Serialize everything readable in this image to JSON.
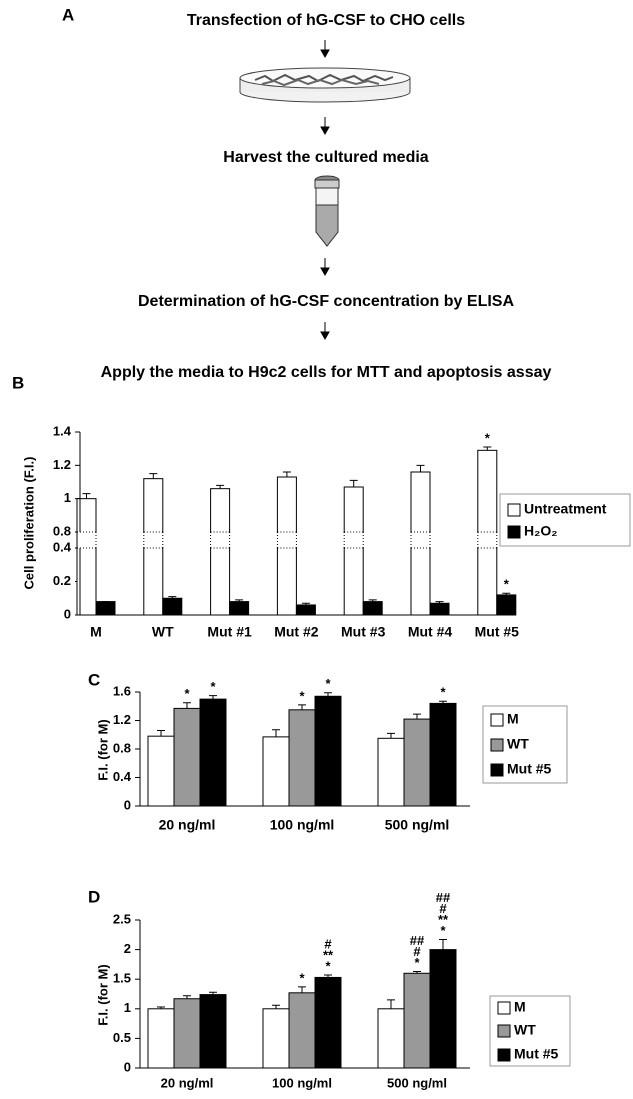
{
  "panel_a": {
    "panel_label": "A",
    "steps": [
      "Transfection of hG-CSF to CHO cells",
      "Harvest the cultured media",
      "Determination of hG-CSF concentration by ELISA",
      "Apply the media to H9c2 cells for MTT and apoptosis assay"
    ]
  },
  "chart_data": [
    {
      "type": "bar",
      "panel_label": "B",
      "ylabel": "Cell proliferation (F.I.)",
      "categories": [
        "M",
        "WT",
        "Mut #1",
        "Mut #2",
        "Mut #3",
        "Mut #4",
        "Mut #5"
      ],
      "series": [
        {
          "name": "Untreatment",
          "color": "#ffffff",
          "values": [
            1.0,
            1.12,
            1.06,
            1.13,
            1.07,
            1.16,
            1.29
          ],
          "errors": [
            0.03,
            0.03,
            0.02,
            0.03,
            0.04,
            0.04,
            0.02
          ],
          "annotations": [
            null,
            null,
            null,
            null,
            null,
            null,
            [
              "*"
            ]
          ]
        },
        {
          "name": "H₂O₂",
          "color": "#000000",
          "values": [
            0.08,
            0.1,
            0.08,
            0.06,
            0.08,
            0.07,
            0.12
          ],
          "errors": [
            0.0,
            0.01,
            0.01,
            0.01,
            0.01,
            0.01,
            0.01
          ],
          "annotations": [
            null,
            null,
            null,
            null,
            null,
            null,
            [
              "*"
            ]
          ]
        }
      ],
      "ylim": [
        0,
        1.4
      ],
      "ybreak": [
        0.4,
        0.8
      ],
      "yticks": [
        0,
        0.2,
        0.4,
        0.8,
        1,
        1.2,
        1.4
      ]
    },
    {
      "type": "bar",
      "panel_label": "C",
      "ylabel": "F.I. (for M)",
      "categories": [
        "20 ng/ml",
        "100 ng/ml",
        "500 ng/ml"
      ],
      "series": [
        {
          "name": "M",
          "color": "#ffffff",
          "values": [
            0.98,
            0.97,
            0.95
          ],
          "errors": [
            0.08,
            0.1,
            0.07
          ],
          "annotations": [
            null,
            null,
            null
          ]
        },
        {
          "name": "WT",
          "color": "#999999",
          "values": [
            1.37,
            1.35,
            1.22
          ],
          "errors": [
            0.08,
            0.07,
            0.07
          ],
          "annotations": [
            [
              "*"
            ],
            [
              "*"
            ],
            null
          ]
        },
        {
          "name": "Mut #5",
          "color": "#000000",
          "values": [
            1.5,
            1.54,
            1.44
          ],
          "errors": [
            0.05,
            0.05,
            0.03
          ],
          "annotations": [
            [
              "*"
            ],
            [
              "*"
            ],
            [
              "*"
            ]
          ]
        }
      ],
      "ylim": [
        0,
        1.6
      ],
      "yticks": [
        0,
        0.4,
        0.8,
        1.2,
        1.6
      ]
    },
    {
      "type": "bar",
      "panel_label": "D",
      "ylabel": "F.I. (for M)",
      "categories": [
        "20 ng/ml",
        "100 ng/ml",
        "500 ng/ml"
      ],
      "series": [
        {
          "name": "M",
          "color": "#ffffff",
          "values": [
            1.0,
            1.0,
            1.0
          ],
          "errors": [
            0.03,
            0.06,
            0.15
          ],
          "annotations": [
            null,
            null,
            null
          ]
        },
        {
          "name": "WT",
          "color": "#999999",
          "values": [
            1.17,
            1.27,
            1.6
          ],
          "errors": [
            0.05,
            0.1,
            0.03
          ],
          "annotations": [
            null,
            [
              "*"
            ],
            [
              "##",
              "#",
              "*"
            ]
          ]
        },
        {
          "name": "Mut #5",
          "color": "#000000",
          "values": [
            1.24,
            1.53,
            2.0
          ],
          "errors": [
            0.04,
            0.04,
            0.17
          ],
          "annotations": [
            null,
            [
              "#",
              "**",
              "*"
            ],
            [
              "##",
              "#",
              "**",
              "*"
            ]
          ]
        }
      ],
      "ylim": [
        0,
        2.5
      ],
      "yticks": [
        0,
        0.5,
        1,
        1.5,
        2,
        2.5
      ]
    }
  ]
}
